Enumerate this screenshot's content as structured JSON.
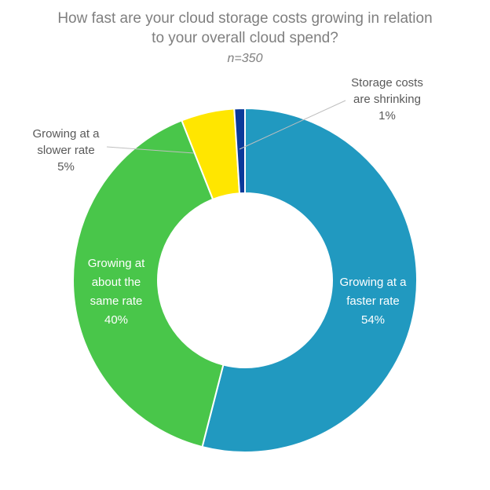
{
  "chart_data": {
    "type": "pie",
    "style": "donut",
    "title": "How fast are your cloud storage costs growing in relation to your overall cloud spend?",
    "title_lines": [
      "How fast are your cloud storage costs growing in relation",
      "to your overall cloud spend?"
    ],
    "subtitle": "n=350",
    "slices": [
      {
        "label": "Growing at a faster rate",
        "label_lines": [
          "Growing at a",
          "faster rate"
        ],
        "value": 54,
        "display": "54%",
        "color": "#2199c0",
        "label_color": "#ffffff"
      },
      {
        "label": "Growing at about the same rate",
        "label_lines": [
          "Growing at",
          "about the",
          "same rate"
        ],
        "value": 40,
        "display": "40%",
        "color": "#49c64a",
        "label_color": "#ffffff"
      },
      {
        "label": "Growing at a slower rate",
        "label_lines": [
          "Growing at a",
          "slower rate"
        ],
        "value": 5,
        "display": "5%",
        "color": "#ffe600",
        "label_color": "#595959"
      },
      {
        "label": "Storage costs are shrinking",
        "label_lines": [
          "Storage costs",
          "are shrinking"
        ],
        "value": 1,
        "display": "1%",
        "color": "#0b3a9a",
        "label_color": "#595959"
      }
    ],
    "legend": "none"
  }
}
